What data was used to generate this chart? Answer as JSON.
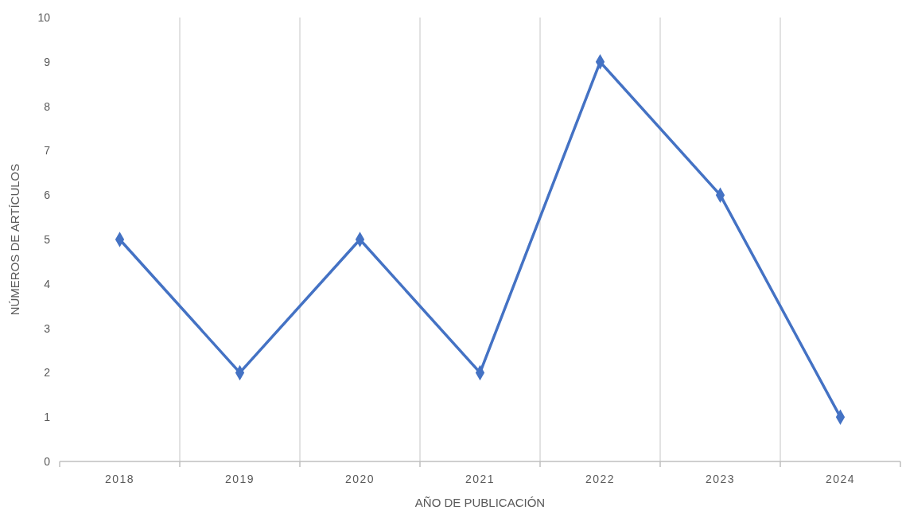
{
  "chart_data": {
    "type": "line",
    "xlabel": "AÑO DE PUBLICACIÓN",
    "ylabel": "NÚMEROS DE ARTÍCULOS",
    "categories": [
      "2018",
      "2019",
      "2020",
      "2021",
      "2022",
      "2023",
      "2024"
    ],
    "series": [
      {
        "color": "#4472c4",
        "values": [
          5,
          2,
          5,
          2,
          9,
          6,
          1
        ]
      }
    ],
    "ylim": [
      0,
      10
    ],
    "yticks": [
      0,
      1,
      2,
      3,
      4,
      5,
      6,
      7,
      8,
      9,
      10
    ],
    "grid": "x",
    "marker": "diamond",
    "line_style": "solid"
  }
}
